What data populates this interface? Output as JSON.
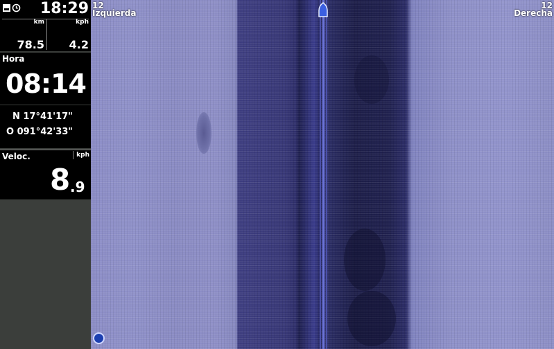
{
  "status": {
    "icons": [
      "sd-card-icon",
      "history-icon"
    ],
    "time": "18:29",
    "unit_distance": "km",
    "unit_speed": "kph",
    "distance": "78.5",
    "speed": "4.2"
  },
  "hora": {
    "label": "Hora",
    "value": "08:14"
  },
  "position": {
    "lat": "N 17°41'17\"",
    "lon": "O 091°42'33\""
  },
  "velocidad": {
    "label": "Veloc.",
    "unit": "kph",
    "integer": "8",
    "decimal": ".9"
  },
  "sonar": {
    "left_range": "12",
    "left_label": "Izquierda",
    "right_range": "12",
    "right_label": "Derecha",
    "boat_icon": "boat-icon",
    "menu_icon": "menu-icon",
    "colors": {
      "near": "#2e2e6a",
      "far": "#8e90c8",
      "centerline": "#6a73d6"
    }
  }
}
